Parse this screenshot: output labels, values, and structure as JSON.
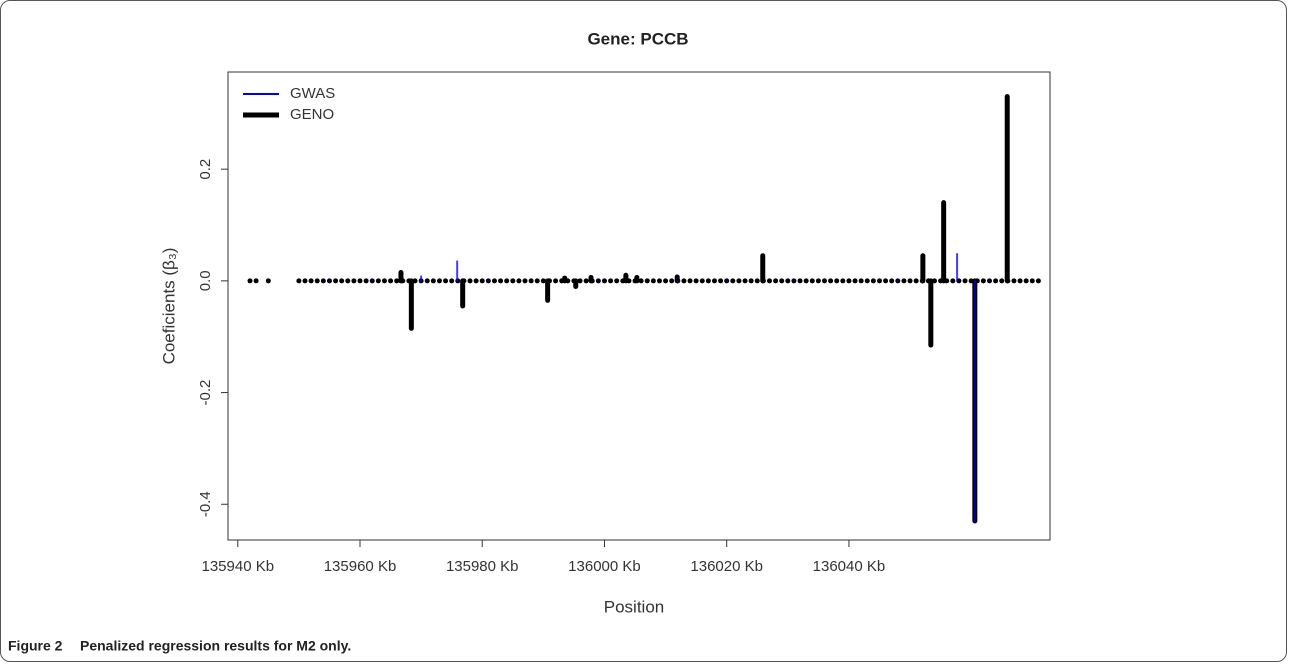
{
  "chart_data": {
    "type": "spike",
    "title": "Gene: PCCB",
    "xlabel": "Position",
    "ylabel": "Coeficients (β₃)",
    "xlim": [
      135938.4,
      136072.9
    ],
    "ylim": [
      -0.464,
      0.374
    ],
    "xticks": [
      {
        "value": 135940,
        "label": "135940 Kb"
      },
      {
        "value": 135960,
        "label": "135960 Kb"
      },
      {
        "value": 135980,
        "label": "135980 Kb"
      },
      {
        "value": 136000,
        "label": "136000 Kb"
      },
      {
        "value": 136020,
        "label": "136020 Kb"
      },
      {
        "value": 136040,
        "label": "136040 Kb"
      }
    ],
    "yticks": [
      -0.4,
      -0.2,
      {
        "value": 0,
        "label": "0.0"
      },
      0.2
    ],
    "legend": "top-left",
    "series": [
      {
        "name": "GWAS",
        "color": "#0000ee",
        "width": 2,
        "x": [
          135955,
          135962,
          135970,
          135975.9,
          135981,
          135999,
          136012,
          136020,
          136031,
          136048,
          136057.7,
          136060.6,
          136063
        ],
        "values": [
          0,
          0,
          0.008,
          0.035,
          0,
          0,
          0,
          0,
          0,
          0,
          0.048,
          -0.43,
          0
        ]
      },
      {
        "name": "GENO",
        "color": "#000000",
        "width": 5,
        "x": [
          135942,
          135943,
          135945,
          135950,
          135951,
          135952,
          135953,
          135954,
          135955,
          135956,
          135957,
          135958,
          135959,
          135960,
          135961,
          135962,
          135963,
          135964,
          135965,
          135966,
          135967,
          135968,
          135969,
          135970,
          135971,
          135972,
          135973,
          135974,
          135975,
          135976,
          135977,
          135978,
          135979,
          135980,
          135981,
          135982,
          135983,
          135984,
          135985,
          135986,
          135987,
          135988,
          135989,
          135990,
          135991,
          135992,
          135993,
          135994,
          135995,
          135996,
          135997,
          135998,
          135999,
          136000,
          136001,
          136002,
          136003,
          136004,
          136005,
          136006,
          136007,
          136008,
          136009,
          136010,
          136011,
          136012,
          136013,
          136014,
          136015,
          136016,
          136017,
          136018,
          136019,
          136020,
          136021,
          136022,
          136023,
          136024,
          136025,
          136026,
          136027,
          136028,
          136029,
          136030,
          136031,
          136032,
          136033,
          136034,
          136035,
          136036,
          136037,
          136038,
          136039,
          136040,
          136041,
          136042,
          136043,
          136044,
          136045,
          136046,
          136047,
          136048,
          136049,
          136050,
          136051,
          136052,
          136053,
          136054,
          136055,
          136056,
          136057,
          136058,
          136059,
          136060,
          136061,
          136062,
          136063,
          136064,
          136065,
          136066,
          136067,
          136068,
          136069,
          136070,
          136071,
          135966.7,
          135968.4,
          135976.8,
          135990.7,
          135993.5,
          135995.3,
          135997.8,
          136003.5,
          136005.3,
          136011.9,
          136025.9,
          136052.1,
          136053.4,
          136055.5,
          136060.6,
          136065.9
        ],
        "values": [
          0,
          0,
          0,
          0,
          0,
          0,
          0,
          0,
          0,
          0,
          0,
          0,
          0,
          0,
          0,
          0,
          0,
          0,
          0,
          0,
          0,
          0,
          0,
          0,
          0,
          0,
          0,
          0,
          0,
          0,
          0,
          0,
          0,
          0,
          0,
          0,
          0,
          0,
          0,
          0,
          0,
          0,
          0,
          0,
          0,
          0,
          0,
          0,
          0,
          0,
          0,
          0,
          0,
          0,
          0,
          0,
          0,
          0,
          0,
          0,
          0,
          0,
          0,
          0,
          0,
          0,
          0,
          0,
          0,
          0,
          0,
          0,
          0,
          0,
          0,
          0,
          0,
          0,
          0,
          0,
          0,
          0,
          0,
          0,
          0,
          0,
          0,
          0,
          0,
          0,
          0,
          0,
          0,
          0,
          0,
          0,
          0,
          0,
          0,
          0,
          0,
          0,
          0,
          0,
          0,
          0,
          0,
          0,
          0,
          0,
          0,
          0,
          0,
          0,
          0,
          0,
          0,
          0,
          0,
          0,
          0,
          0,
          0,
          0,
          0,
          0.015,
          -0.085,
          -0.045,
          -0.035,
          0.005,
          -0.01,
          0.006,
          0.01,
          0.006,
          0.007,
          0.045,
          0.045,
          -0.115,
          0.14,
          -0.43,
          0.33
        ]
      }
    ]
  },
  "caption": {
    "label": "Figure 2",
    "text": "Penalized regression results for M2 only."
  }
}
